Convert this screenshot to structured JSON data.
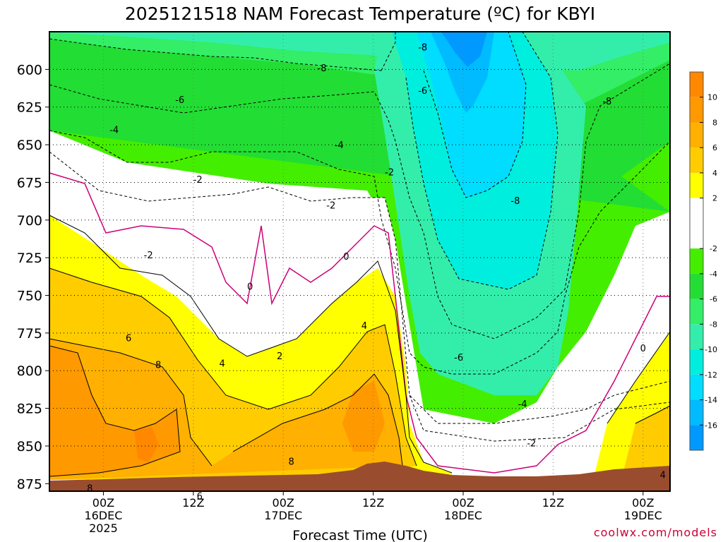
{
  "chart_data": {
    "type": "heatmap",
    "title": "2025121518 NAM Forecast Temperature (ºC) for KBYI",
    "xlabel": "Forecast Time (UTC)",
    "ylabel": "",
    "watermark": "coolwx.com/models",
    "x_range_hours": [
      -6,
      63
    ],
    "y_range_hpa": [
      575,
      880
    ],
    "x_ticks": [
      {
        "hour": 0,
        "top": "00Z",
        "mid": "16DEC",
        "bot": "2025"
      },
      {
        "hour": 10,
        "top": "12Z",
        "mid": "",
        "bot": ""
      },
      {
        "hour": 20,
        "top": "00Z",
        "mid": "17DEC",
        "bot": ""
      },
      {
        "hour": 30,
        "top": "12Z",
        "mid": "",
        "bot": ""
      },
      {
        "hour": 40,
        "top": "00Z",
        "mid": "18DEC",
        "bot": ""
      },
      {
        "hour": 50,
        "top": "12Z",
        "mid": "",
        "bot": ""
      },
      {
        "hour": 60,
        "top": "00Z",
        "mid": "19DEC",
        "bot": ""
      }
    ],
    "y_ticks": [
      600,
      625,
      650,
      675,
      700,
      725,
      750,
      775,
      800,
      825,
      850,
      875
    ],
    "legend": {
      "placement": "right",
      "labels": [
        "10",
        "8",
        "6",
        "4",
        "2",
        "-2",
        "-4",
        "-6",
        "-8",
        "-10",
        "-12",
        "-14",
        "-16"
      ],
      "bands": [
        {
          "min": 10,
          "max": 12,
          "color": "#ff8800"
        },
        {
          "min": 8,
          "max": 10,
          "color": "#ff9900"
        },
        {
          "min": 6,
          "max": 8,
          "color": "#ffb000"
        },
        {
          "min": 4,
          "max": 6,
          "color": "#ffcc00"
        },
        {
          "min": 2,
          "max": 4,
          "color": "#ffff00"
        },
        {
          "min": -2,
          "max": 2,
          "color": "#ffffff"
        },
        {
          "min": -4,
          "max": -2,
          "color": "#44ee00"
        },
        {
          "min": -6,
          "max": -4,
          "color": "#22dd33"
        },
        {
          "min": -8,
          "max": -6,
          "color": "#33ee66"
        },
        {
          "min": -10,
          "max": -8,
          "color": "#33eeaa"
        },
        {
          "min": -12,
          "max": -10,
          "color": "#00eedd"
        },
        {
          "min": -14,
          "max": -12,
          "color": "#00ddff"
        },
        {
          "min": -16,
          "max": -14,
          "color": "#00bbff"
        },
        {
          "min": -18,
          "max": -16,
          "color": "#0099ff"
        }
      ]
    },
    "contour_labels": [
      {
        "text": "-8",
        "hour": 24.3,
        "p": 599
      },
      {
        "text": "-8",
        "hour": 35.5,
        "p": 585
      },
      {
        "text": "-6",
        "hour": 8.5,
        "p": 620
      },
      {
        "text": "-6",
        "hour": 35.5,
        "p": 614
      },
      {
        "text": "-8",
        "hour": 56,
        "p": 621
      },
      {
        "text": "-4",
        "hour": 1.2,
        "p": 640
      },
      {
        "text": "-4",
        "hour": 26.2,
        "p": 650
      },
      {
        "text": "-2",
        "hour": 10.5,
        "p": 673
      },
      {
        "text": "-2",
        "hour": 25.3,
        "p": 690
      },
      {
        "text": "-2",
        "hour": 31.8,
        "p": 668
      },
      {
        "text": "-8",
        "hour": 45.8,
        "p": 687
      },
      {
        "text": "-2",
        "hour": 5,
        "p": 723
      },
      {
        "text": "0",
        "hour": 16.3,
        "p": 744
      },
      {
        "text": "0",
        "hour": 27,
        "p": 724
      },
      {
        "text": "4",
        "hour": 29,
        "p": 770
      },
      {
        "text": "2",
        "hour": 19.6,
        "p": 790
      },
      {
        "text": "6",
        "hour": 2.8,
        "p": 778
      },
      {
        "text": "4",
        "hour": 13.2,
        "p": 795
      },
      {
        "text": "8",
        "hour": 6.1,
        "p": 796
      },
      {
        "text": "8",
        "hour": 20.9,
        "p": 860
      },
      {
        "text": "8",
        "hour": -1.5,
        "p": 878
      },
      {
        "text": "6",
        "hour": 10.7,
        "p": 883
      },
      {
        "text": "-6",
        "hour": 39.5,
        "p": 791
      },
      {
        "text": "-4",
        "hour": 46.6,
        "p": 822
      },
      {
        "text": "-2",
        "hour": 47.6,
        "p": 848
      },
      {
        "text": "0",
        "hour": 60,
        "p": 785
      },
      {
        "text": "4",
        "hour": 62.2,
        "p": 869
      }
    ]
  }
}
